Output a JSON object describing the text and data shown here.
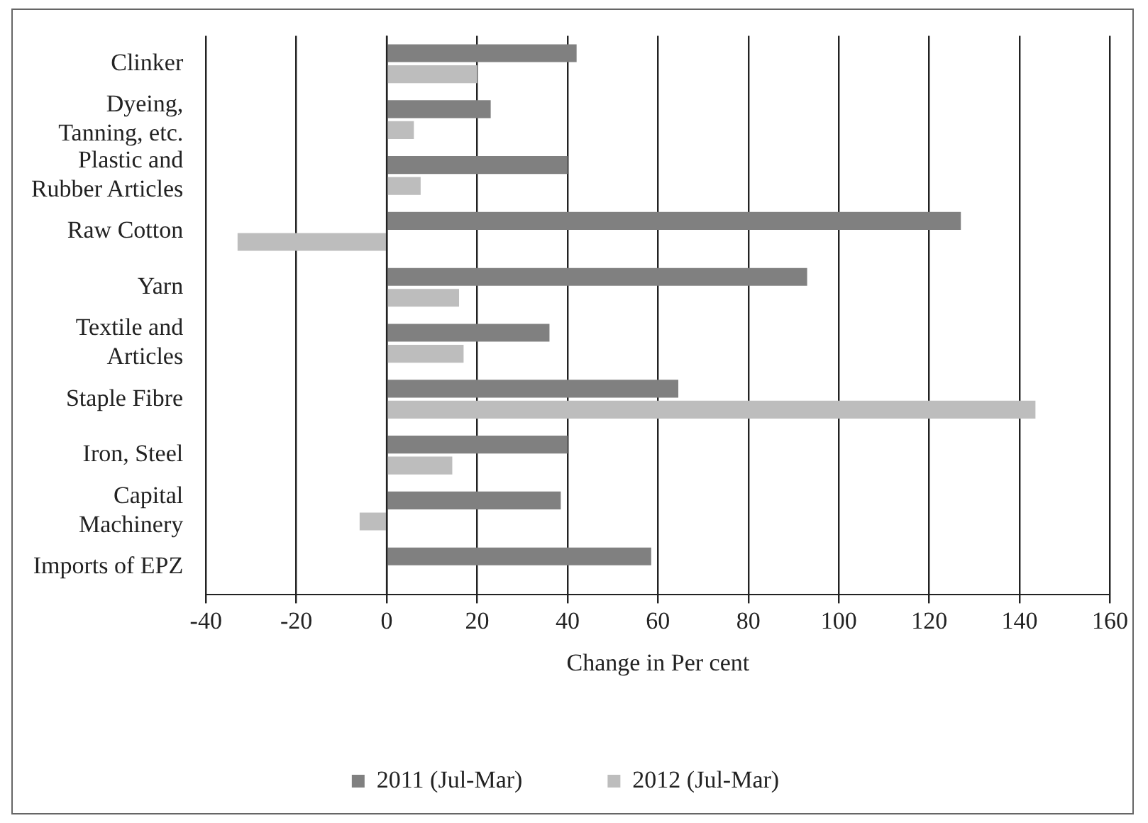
{
  "chart_data": {
    "type": "bar",
    "orientation": "horizontal",
    "xlabel": "Change in Per cent",
    "categories": [
      "Clinker",
      "Dyeing, Tanning, etc.",
      "Plastic and Rubber Articles",
      "Raw Cotton",
      "Yarn",
      "Textile and Articles",
      "Staple Fibre",
      "Iron, Steel",
      "Capital Machinery",
      "Imports of EPZ"
    ],
    "series": [
      {
        "name": "2011 (Jul-Mar)",
        "color": "#808080",
        "values": [
          42,
          23,
          40,
          127,
          93,
          36,
          64.5,
          40,
          38.5,
          58.5
        ]
      },
      {
        "name": "2012 (Jul-Mar)",
        "color": "#bdbdbd",
        "values": [
          20,
          6,
          7.5,
          -33,
          16,
          17,
          143.5,
          14.5,
          -6,
          0
        ]
      }
    ],
    "xlim": [
      -40,
      160
    ],
    "xticks": [
      -40,
      -20,
      0,
      20,
      40,
      60,
      80,
      100,
      120,
      140,
      160
    ],
    "grid": "x",
    "legend": "bottom"
  }
}
